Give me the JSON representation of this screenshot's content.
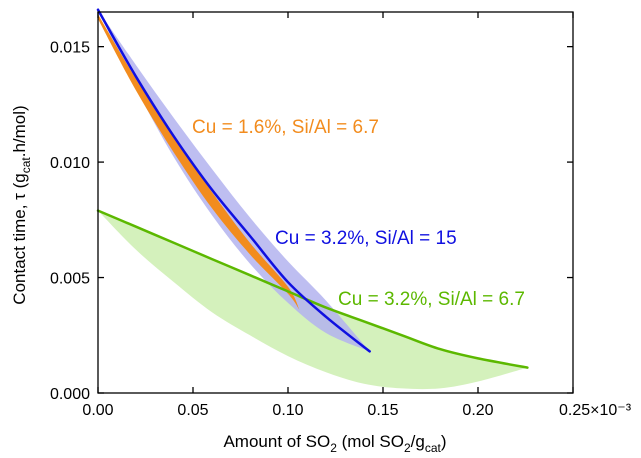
{
  "chart_data": {
    "type": "line",
    "xlabel": {
      "main": "Amount of SO",
      "sub1": "2",
      "mid": " (mol SO",
      "sub2": "2",
      "slash": "/g",
      "sub3": "cat",
      "end": ")"
    },
    "ylabel": {
      "main": "Contact time, τ (g",
      "sub": "cat",
      "end": ".h/mol)"
    },
    "xlim": [
      0,
      0.00025
    ],
    "ylim": [
      0,
      0.0165
    ],
    "x_ticks": [
      0,
      5e-05,
      0.0001,
      0.00015,
      0.0002,
      0.00025
    ],
    "x_tick_labels": [
      "0.00",
      "0.05",
      "0.10",
      "0.15",
      "0.20",
      "0.25×10⁻³"
    ],
    "y_ticks": [
      0,
      0.005,
      0.01,
      0.015
    ],
    "y_tick_labels": [
      "0.000",
      "0.005",
      "0.010",
      "0.015"
    ],
    "grid": false,
    "series": [
      {
        "name": "Cu = 3.2%, Si/Al = 6.7",
        "color": "#5cb800",
        "band_color": "#cdeeb0",
        "x": [
          0,
          2e-05,
          4e-05,
          6e-05,
          8e-05,
          0.0001,
          0.00012,
          0.00014,
          0.00016,
          0.00018,
          0.0002,
          0.000226
        ],
        "y": [
          0.0079,
          0.0072,
          0.0065,
          0.0058,
          0.0051,
          0.0044,
          0.0037,
          0.0031,
          0.0025,
          0.0019,
          0.0015,
          0.0011
        ],
        "band_upper": [
          0.0079,
          0.0072,
          0.0065,
          0.0058,
          0.0051,
          0.0044,
          0.0037,
          0.0031,
          0.0025,
          0.0019,
          0.0015,
          0.0011
        ],
        "band_lower": [
          0.0079,
          0.0062,
          0.0048,
          0.0035,
          0.0025,
          0.0016,
          0.0009,
          0.0004,
          0.0002,
          0.0002,
          0.0005,
          0.0011
        ]
      },
      {
        "name": "Cu = 3.2%, Si/Al = 15",
        "color": "#1010e0",
        "band_color": "#b3b3ee",
        "x": [
          0,
          2e-05,
          4e-05,
          6e-05,
          8e-05,
          0.0001,
          0.00012,
          0.000143
        ],
        "y": [
          0.0166,
          0.0137,
          0.0111,
          0.0088,
          0.0068,
          0.0048,
          0.0033,
          0.0018
        ],
        "band_upper": [
          0.0166,
          0.0142,
          0.0119,
          0.0097,
          0.0076,
          0.0057,
          0.004,
          0.0018
        ],
        "band_lower": [
          0.0166,
          0.0132,
          0.0102,
          0.0077,
          0.0056,
          0.0039,
          0.0026,
          0.0018
        ]
      },
      {
        "name": "Cu = 1.6%, Si/Al = 6.7",
        "color": "#f28c1e",
        "x": [
          0,
          2e-05,
          4e-05,
          6e-05,
          8e-05,
          0.0001,
          0.000106
        ],
        "y": [
          0.0163,
          0.0134,
          0.0108,
          0.0084,
          0.0063,
          0.0045,
          0.0036
        ],
        "band_upper": [
          0.0164,
          0.0136,
          0.0111,
          0.0087,
          0.0065,
          0.0046,
          0.0036
        ],
        "band_lower": [
          0.0162,
          0.0131,
          0.0104,
          0.008,
          0.006,
          0.0043,
          0.0036
        ]
      }
    ],
    "annotations": [
      {
        "text": "Cu = 1.6%, Si/Al = 6.7",
        "color": "#f28c1e"
      },
      {
        "text": "Cu = 3.2%, Si/Al = 15",
        "color": "#1010e0"
      },
      {
        "text": "Cu = 3.2%, Si/Al = 6.7",
        "color": "#5cb800"
      }
    ]
  }
}
